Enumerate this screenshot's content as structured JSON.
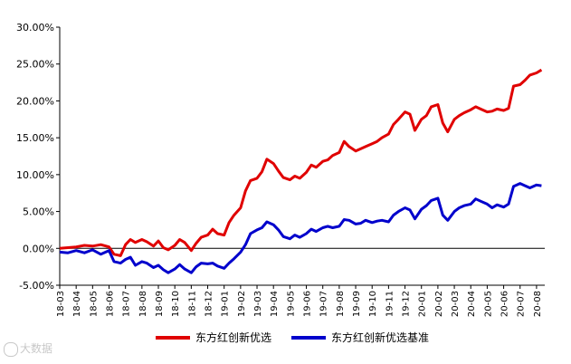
{
  "chart_data": {
    "type": "line",
    "title": "",
    "xlabel": "",
    "ylabel": "",
    "ylim": [
      -5,
      30
    ],
    "ytick_labels": [
      "30.00%",
      "25.00%",
      "20.00%",
      "15.00%",
      "10.00%",
      "5.00%",
      "0.00%",
      "-5.00%"
    ],
    "ytick_values": [
      30,
      25,
      20,
      15,
      10,
      5,
      0,
      -5
    ],
    "categories": [
      "18-03",
      "18-04",
      "18-05",
      "18-06",
      "18-07",
      "18-08",
      "18-09",
      "18-10",
      "18-11",
      "18-12",
      "19-01",
      "19-02",
      "19-03",
      "19-04",
      "19-05",
      "19-06",
      "19-07",
      "19-08",
      "19-09",
      "19-10",
      "19-11",
      "19-12",
      "20-01",
      "20-02",
      "20-03",
      "20-04",
      "20-05",
      "20-06",
      "20-07",
      "20-08"
    ],
    "legend_position": "bottom",
    "grid": false,
    "series": [
      {
        "name": "东方红创新优选",
        "color": "#e00000",
        "x": [
          0,
          0.5,
          1,
          1.5,
          2,
          2.5,
          3,
          3.3,
          3.7,
          4,
          4.3,
          4.6,
          5,
          5.3,
          5.7,
          6,
          6.3,
          6.6,
          7,
          7.3,
          7.6,
          8,
          8.3,
          8.6,
          9,
          9.3,
          9.6,
          10,
          10.3,
          10.6,
          11,
          11.3,
          11.6,
          12,
          12.3,
          12.6,
          13,
          13.3,
          13.6,
          14,
          14.3,
          14.6,
          15,
          15.3,
          15.6,
          16,
          16.3,
          16.6,
          17,
          17.3,
          17.6,
          18,
          18.3,
          18.6,
          19,
          19.3,
          19.6,
          20,
          20.3,
          20.6,
          21,
          21.3,
          21.6,
          22,
          22.3,
          22.6,
          23,
          23.3,
          23.6,
          24,
          24.3,
          24.6,
          25,
          25.3,
          25.6,
          26,
          26.3,
          26.6,
          27,
          27.3,
          27.6,
          28,
          28.3,
          28.6,
          29,
          29.3
        ],
        "values": [
          0.0,
          0.1,
          0.2,
          0.4,
          0.3,
          0.5,
          0.2,
          -0.8,
          -1.0,
          0.5,
          1.2,
          0.8,
          1.2,
          0.9,
          0.3,
          1.0,
          0.1,
          -0.2,
          0.4,
          1.2,
          0.8,
          -0.3,
          0.7,
          1.5,
          1.8,
          2.6,
          2.0,
          1.8,
          3.5,
          4.5,
          5.5,
          7.8,
          9.2,
          9.5,
          10.4,
          12.1,
          11.5,
          10.5,
          9.6,
          9.3,
          9.8,
          9.5,
          10.3,
          11.3,
          11.0,
          11.8,
          12.0,
          12.6,
          13.0,
          14.5,
          13.8,
          13.2,
          13.5,
          13.8,
          14.2,
          14.5,
          15.0,
          15.5,
          16.8,
          17.5,
          18.5,
          18.2,
          16.0,
          17.5,
          18.0,
          19.2,
          19.5,
          17.0,
          15.8,
          17.5,
          18.0,
          18.4,
          18.8,
          19.2,
          18.9,
          18.5,
          18.6,
          18.9,
          18.7,
          19.0,
          22.0,
          22.2,
          22.8,
          23.5,
          23.8,
          24.2
        ]
      },
      {
        "name": "东方红创新优选基准",
        "color": "#0000cc",
        "x": [
          0,
          0.5,
          1,
          1.5,
          2,
          2.5,
          3,
          3.3,
          3.7,
          4,
          4.3,
          4.6,
          5,
          5.3,
          5.7,
          6,
          6.3,
          6.6,
          7,
          7.3,
          7.6,
          8,
          8.3,
          8.6,
          9,
          9.3,
          9.6,
          10,
          10.3,
          10.6,
          11,
          11.3,
          11.6,
          12,
          12.3,
          12.6,
          13,
          13.3,
          13.6,
          14,
          14.3,
          14.6,
          15,
          15.3,
          15.6,
          16,
          16.3,
          16.6,
          17,
          17.3,
          17.6,
          18,
          18.3,
          18.6,
          19,
          19.3,
          19.6,
          20,
          20.3,
          20.6,
          21,
          21.3,
          21.6,
          22,
          22.3,
          22.6,
          23,
          23.3,
          23.6,
          24,
          24.3,
          24.6,
          25,
          25.3,
          25.6,
          26,
          26.3,
          26.6,
          27,
          27.3,
          27.6,
          28,
          28.3,
          28.6,
          29,
          29.3
        ],
        "values": [
          -0.5,
          -0.6,
          -0.3,
          -0.6,
          -0.2,
          -0.8,
          -0.3,
          -1.8,
          -2.0,
          -1.5,
          -1.2,
          -2.3,
          -1.8,
          -2.0,
          -2.6,
          -2.3,
          -2.9,
          -3.3,
          -2.8,
          -2.2,
          -2.8,
          -3.3,
          -2.5,
          -2.0,
          -2.1,
          -2.0,
          -2.4,
          -2.7,
          -2.0,
          -1.4,
          -0.5,
          0.5,
          2.0,
          2.5,
          2.8,
          3.6,
          3.2,
          2.5,
          1.6,
          1.3,
          1.8,
          1.5,
          2.0,
          2.6,
          2.3,
          2.8,
          3.0,
          2.8,
          3.0,
          3.9,
          3.8,
          3.3,
          3.4,
          3.8,
          3.5,
          3.7,
          3.8,
          3.6,
          4.5,
          5.0,
          5.5,
          5.2,
          4.0,
          5.3,
          5.8,
          6.5,
          6.8,
          4.5,
          3.8,
          5.0,
          5.5,
          5.8,
          6.0,
          6.7,
          6.4,
          6.0,
          5.5,
          5.9,
          5.6,
          6.0,
          8.4,
          8.8,
          8.5,
          8.2,
          8.6,
          8.5
        ]
      }
    ]
  },
  "watermark": {
    "text": "大数据"
  }
}
